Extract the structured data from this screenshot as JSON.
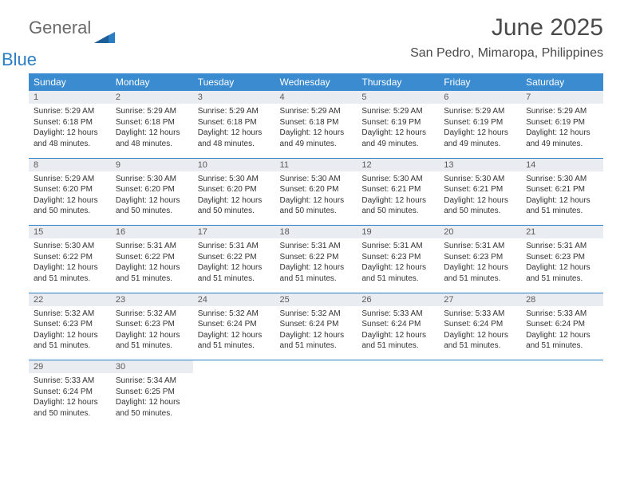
{
  "brand": {
    "part1": "General",
    "part2": "Blue"
  },
  "title": "June 2025",
  "location": "San Pedro, Mimaropa, Philippines",
  "colors": {
    "header_bg": "#3a8bd0",
    "daynum_bg": "#e9edf1",
    "rule": "#2b7dc4",
    "text": "#333333",
    "title_text": "#4a4a4a",
    "logo_gray": "#6a6a6a",
    "logo_blue": "#2b7dc4"
  },
  "typography": {
    "title_fontsize": 30,
    "location_fontsize": 16,
    "header_fontsize": 12,
    "daynum_fontsize": 11,
    "body_fontsize": 10
  },
  "weekdays": [
    "Sunday",
    "Monday",
    "Tuesday",
    "Wednesday",
    "Thursday",
    "Friday",
    "Saturday"
  ],
  "weeks": [
    [
      {
        "n": "1",
        "sunrise": "Sunrise: 5:29 AM",
        "sunset": "Sunset: 6:18 PM",
        "daylight": "Daylight: 12 hours and 48 minutes."
      },
      {
        "n": "2",
        "sunrise": "Sunrise: 5:29 AM",
        "sunset": "Sunset: 6:18 PM",
        "daylight": "Daylight: 12 hours and 48 minutes."
      },
      {
        "n": "3",
        "sunrise": "Sunrise: 5:29 AM",
        "sunset": "Sunset: 6:18 PM",
        "daylight": "Daylight: 12 hours and 48 minutes."
      },
      {
        "n": "4",
        "sunrise": "Sunrise: 5:29 AM",
        "sunset": "Sunset: 6:18 PM",
        "daylight": "Daylight: 12 hours and 49 minutes."
      },
      {
        "n": "5",
        "sunrise": "Sunrise: 5:29 AM",
        "sunset": "Sunset: 6:19 PM",
        "daylight": "Daylight: 12 hours and 49 minutes."
      },
      {
        "n": "6",
        "sunrise": "Sunrise: 5:29 AM",
        "sunset": "Sunset: 6:19 PM",
        "daylight": "Daylight: 12 hours and 49 minutes."
      },
      {
        "n": "7",
        "sunrise": "Sunrise: 5:29 AM",
        "sunset": "Sunset: 6:19 PM",
        "daylight": "Daylight: 12 hours and 49 minutes."
      }
    ],
    [
      {
        "n": "8",
        "sunrise": "Sunrise: 5:29 AM",
        "sunset": "Sunset: 6:20 PM",
        "daylight": "Daylight: 12 hours and 50 minutes."
      },
      {
        "n": "9",
        "sunrise": "Sunrise: 5:30 AM",
        "sunset": "Sunset: 6:20 PM",
        "daylight": "Daylight: 12 hours and 50 minutes."
      },
      {
        "n": "10",
        "sunrise": "Sunrise: 5:30 AM",
        "sunset": "Sunset: 6:20 PM",
        "daylight": "Daylight: 12 hours and 50 minutes."
      },
      {
        "n": "11",
        "sunrise": "Sunrise: 5:30 AM",
        "sunset": "Sunset: 6:20 PM",
        "daylight": "Daylight: 12 hours and 50 minutes."
      },
      {
        "n": "12",
        "sunrise": "Sunrise: 5:30 AM",
        "sunset": "Sunset: 6:21 PM",
        "daylight": "Daylight: 12 hours and 50 minutes."
      },
      {
        "n": "13",
        "sunrise": "Sunrise: 5:30 AM",
        "sunset": "Sunset: 6:21 PM",
        "daylight": "Daylight: 12 hours and 50 minutes."
      },
      {
        "n": "14",
        "sunrise": "Sunrise: 5:30 AM",
        "sunset": "Sunset: 6:21 PM",
        "daylight": "Daylight: 12 hours and 51 minutes."
      }
    ],
    [
      {
        "n": "15",
        "sunrise": "Sunrise: 5:30 AM",
        "sunset": "Sunset: 6:22 PM",
        "daylight": "Daylight: 12 hours and 51 minutes."
      },
      {
        "n": "16",
        "sunrise": "Sunrise: 5:31 AM",
        "sunset": "Sunset: 6:22 PM",
        "daylight": "Daylight: 12 hours and 51 minutes."
      },
      {
        "n": "17",
        "sunrise": "Sunrise: 5:31 AM",
        "sunset": "Sunset: 6:22 PM",
        "daylight": "Daylight: 12 hours and 51 minutes."
      },
      {
        "n": "18",
        "sunrise": "Sunrise: 5:31 AM",
        "sunset": "Sunset: 6:22 PM",
        "daylight": "Daylight: 12 hours and 51 minutes."
      },
      {
        "n": "19",
        "sunrise": "Sunrise: 5:31 AM",
        "sunset": "Sunset: 6:23 PM",
        "daylight": "Daylight: 12 hours and 51 minutes."
      },
      {
        "n": "20",
        "sunrise": "Sunrise: 5:31 AM",
        "sunset": "Sunset: 6:23 PM",
        "daylight": "Daylight: 12 hours and 51 minutes."
      },
      {
        "n": "21",
        "sunrise": "Sunrise: 5:31 AM",
        "sunset": "Sunset: 6:23 PM",
        "daylight": "Daylight: 12 hours and 51 minutes."
      }
    ],
    [
      {
        "n": "22",
        "sunrise": "Sunrise: 5:32 AM",
        "sunset": "Sunset: 6:23 PM",
        "daylight": "Daylight: 12 hours and 51 minutes."
      },
      {
        "n": "23",
        "sunrise": "Sunrise: 5:32 AM",
        "sunset": "Sunset: 6:23 PM",
        "daylight": "Daylight: 12 hours and 51 minutes."
      },
      {
        "n": "24",
        "sunrise": "Sunrise: 5:32 AM",
        "sunset": "Sunset: 6:24 PM",
        "daylight": "Daylight: 12 hours and 51 minutes."
      },
      {
        "n": "25",
        "sunrise": "Sunrise: 5:32 AM",
        "sunset": "Sunset: 6:24 PM",
        "daylight": "Daylight: 12 hours and 51 minutes."
      },
      {
        "n": "26",
        "sunrise": "Sunrise: 5:33 AM",
        "sunset": "Sunset: 6:24 PM",
        "daylight": "Daylight: 12 hours and 51 minutes."
      },
      {
        "n": "27",
        "sunrise": "Sunrise: 5:33 AM",
        "sunset": "Sunset: 6:24 PM",
        "daylight": "Daylight: 12 hours and 51 minutes."
      },
      {
        "n": "28",
        "sunrise": "Sunrise: 5:33 AM",
        "sunset": "Sunset: 6:24 PM",
        "daylight": "Daylight: 12 hours and 51 minutes."
      }
    ],
    [
      {
        "n": "29",
        "sunrise": "Sunrise: 5:33 AM",
        "sunset": "Sunset: 6:24 PM",
        "daylight": "Daylight: 12 hours and 50 minutes."
      },
      {
        "n": "30",
        "sunrise": "Sunrise: 5:34 AM",
        "sunset": "Sunset: 6:25 PM",
        "daylight": "Daylight: 12 hours and 50 minutes."
      },
      null,
      null,
      null,
      null,
      null
    ]
  ]
}
